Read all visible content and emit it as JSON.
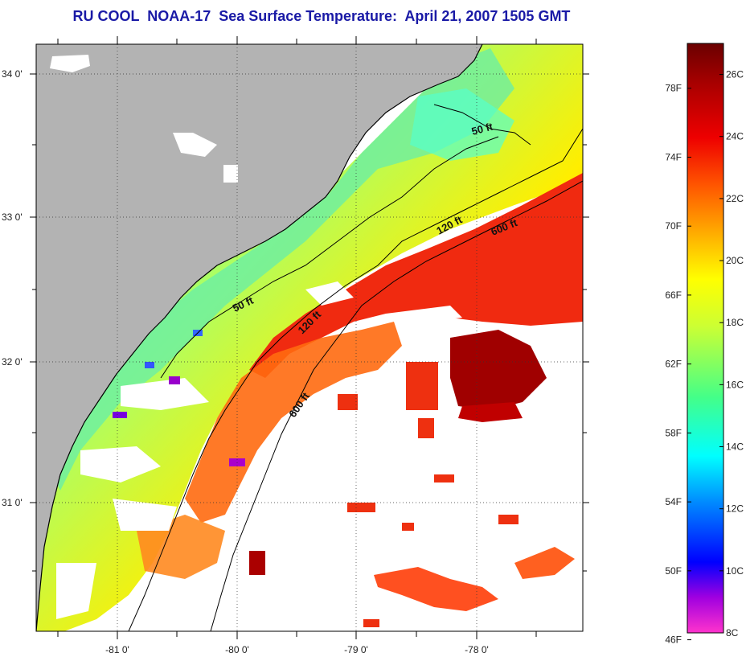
{
  "title": "RU COOL  NOAA-17  Sea Surface Temperature:  April 21, 2007 1505 GMT",
  "map": {
    "lat_labels": [
      "34 0'",
      "33 0'",
      "32 0'",
      "31 0'"
    ],
    "lon_labels": [
      "-81 0'",
      "-80 0'",
      "-79 0'",
      "-78 0'"
    ],
    "contours": [
      {
        "label": "50 ft"
      },
      {
        "label": "50 ft"
      },
      {
        "label": "120 ft"
      },
      {
        "label": "120 ft"
      },
      {
        "label": "600 ft"
      },
      {
        "label": "600 ft"
      }
    ],
    "colors": {
      "land": "#b3b3b3",
      "cloud": "#ffffff"
    }
  },
  "colorbar": {
    "fahrenheit_labels": [
      "78F",
      "74F",
      "70F",
      "66F",
      "62F",
      "58F",
      "54F",
      "50F",
      "46F"
    ],
    "celsius_labels": [
      "26C",
      "24C",
      "22C",
      "20C",
      "18C",
      "16C",
      "14C",
      "12C",
      "10C",
      "8C"
    ],
    "range_c": [
      8,
      27
    ],
    "colors": [
      "#ff33cc",
      "#8800cc",
      "#0000ff",
      "#0099ff",
      "#00ffff",
      "#33ff99",
      "#ccff33",
      "#ffff00",
      "#ffaa00",
      "#ff5500",
      "#ee0000",
      "#aa0000",
      "#770000"
    ]
  }
}
